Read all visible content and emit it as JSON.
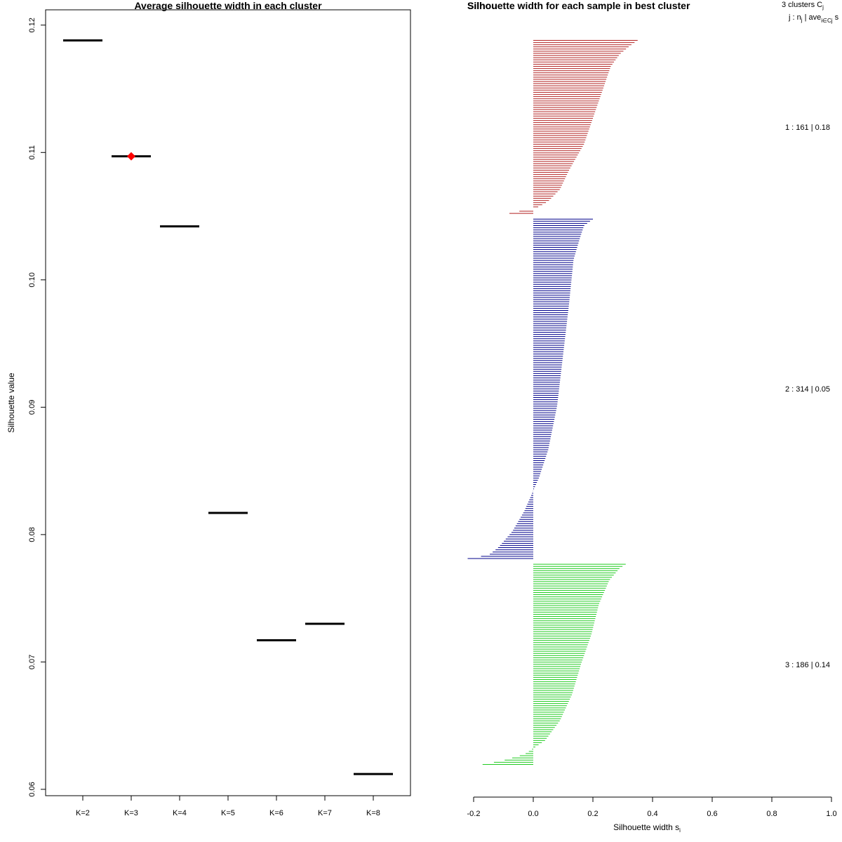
{
  "chart_data": [
    {
      "type": "scatter",
      "title": "Average silhouette width in each cluster",
      "xlabel": "",
      "ylabel": "Silhouette value",
      "categories": [
        "K=2",
        "K=3",
        "K=4",
        "K=5",
        "K=6",
        "K=7",
        "K=8"
      ],
      "values": [
        0.1188,
        0.1097,
        0.1042,
        0.0817,
        0.0717,
        0.073,
        0.0612
      ],
      "best_k": "K=3",
      "best_marker_color": "#ff0000",
      "segment_color": "#000000",
      "ylim": [
        0.0595,
        0.1212
      ],
      "yticks": [
        0.06,
        0.07,
        0.08,
        0.09,
        0.1,
        0.11,
        0.12
      ],
      "ytick_labels": [
        "0.06",
        "0.07",
        "0.08",
        "0.09",
        "0.10",
        "0.11",
        "0.12"
      ],
      "grid": false
    },
    {
      "type": "bar",
      "orientation": "horizontal",
      "title": "Silhouette width for each sample in best cluster",
      "title_overlap_text": "Silhou",
      "xlabel": "Silhouette width s",
      "xlabel_subscript": "i",
      "xlim": [
        -0.2,
        1.0
      ],
      "xticks": [
        -0.2,
        0.0,
        0.2,
        0.4,
        0.6,
        0.8,
        1.0
      ],
      "xtick_labels": [
        "-0.2",
        "0.0",
        "0.2",
        "0.4",
        "0.6",
        "0.8",
        "1.0"
      ],
      "header": {
        "line1": "3  clusters  C",
        "line1_sub": "j",
        "line2_a": "j :  n",
        "line2_sub": "j",
        "line2_b": " | ave",
        "line2_sub2": "i∈Cj",
        "line2_c": "  s"
      },
      "clusters": [
        {
          "id": 1,
          "n": 161,
          "label": "1 :  161  |  0.18",
          "color": "#b22222",
          "sorted_widths": {
            "max": 0.35,
            "profile": [
              [
                0.0,
                0.35
              ],
              [
                0.03,
                0.325
              ],
              [
                0.08,
                0.29
              ],
              [
                0.15,
                0.26
              ],
              [
                0.3,
                0.23
              ],
              [
                0.45,
                0.2
              ],
              [
                0.6,
                0.17
              ],
              [
                0.75,
                0.12
              ],
              [
                0.86,
                0.09
              ],
              [
                0.93,
                0.05
              ],
              [
                0.96,
                0.02
              ],
              [
                0.975,
                0.0
              ],
              [
                0.985,
                -0.04
              ],
              [
                1.0,
                -0.08
              ]
            ]
          }
        },
        {
          "id": 2,
          "n": 314,
          "label": "2 :  314  |  0.05",
          "color": "#00008b",
          "sorted_widths": {
            "max": 0.2,
            "profile": [
              [
                0.0,
                0.2
              ],
              [
                0.02,
                0.17
              ],
              [
                0.06,
                0.155
              ],
              [
                0.12,
                0.135
              ],
              [
                0.25,
                0.12
              ],
              [
                0.4,
                0.1
              ],
              [
                0.55,
                0.08
              ],
              [
                0.68,
                0.05
              ],
              [
                0.76,
                0.02
              ],
              [
                0.8,
                0.0
              ],
              [
                0.86,
                -0.03
              ],
              [
                0.92,
                -0.07
              ],
              [
                0.97,
                -0.12
              ],
              [
                0.99,
                -0.15
              ],
              [
                1.0,
                -0.22
              ]
            ]
          }
        },
        {
          "id": 3,
          "n": 186,
          "label": "3 :  186  |  0.14",
          "color": "#22cc22",
          "sorted_widths": {
            "max": 0.31,
            "profile": [
              [
                0.0,
                0.31
              ],
              [
                0.02,
                0.29
              ],
              [
                0.08,
                0.255
              ],
              [
                0.2,
                0.22
              ],
              [
                0.35,
                0.195
              ],
              [
                0.5,
                0.16
              ],
              [
                0.65,
                0.13
              ],
              [
                0.78,
                0.09
              ],
              [
                0.88,
                0.04
              ],
              [
                0.92,
                0.0
              ],
              [
                0.95,
                -0.03
              ],
              [
                0.98,
                -0.1
              ],
              [
                1.0,
                -0.17
              ]
            ]
          }
        }
      ],
      "grid": false
    }
  ]
}
